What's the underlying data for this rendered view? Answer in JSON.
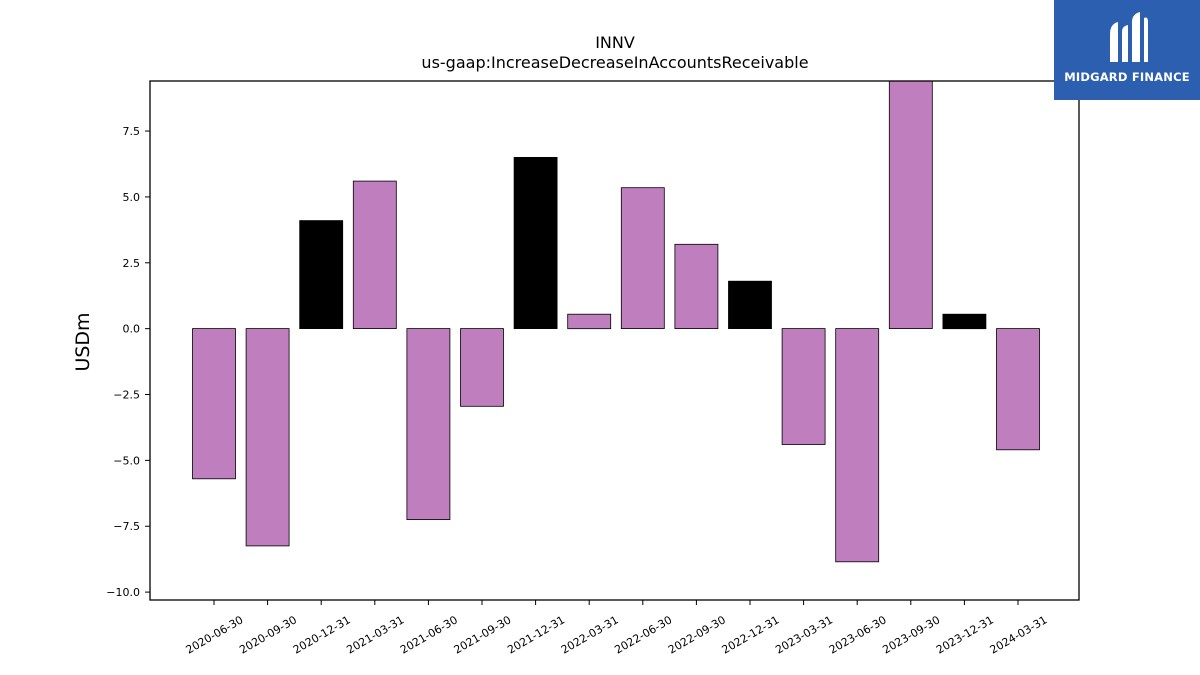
{
  "chart_data": {
    "type": "bar",
    "title": "INNV",
    "subtitle": "us-gaap:IncreaseDecreaseInAccountsReceivable",
    "xlabel": "",
    "ylabel": "USDm",
    "categories": [
      "2020-06-30",
      "2020-09-30",
      "2020-12-31",
      "2021-03-31",
      "2021-06-30",
      "2021-09-30",
      "2021-12-31",
      "2022-03-31",
      "2022-06-30",
      "2022-09-30",
      "2022-12-31",
      "2023-03-31",
      "2023-06-30",
      "2023-09-30",
      "2023-12-31",
      "2024-03-31"
    ],
    "values": [
      -5.7,
      -8.25,
      4.1,
      5.6,
      -7.25,
      -2.95,
      6.5,
      0.55,
      5.35,
      3.2,
      1.8,
      -4.4,
      -8.85,
      9.5,
      0.55,
      -4.6
    ],
    "bar_colors": [
      "#bf7fbf",
      "#bf7fbf",
      "#000000",
      "#bf7fbf",
      "#bf7fbf",
      "#bf7fbf",
      "#000000",
      "#bf7fbf",
      "#bf7fbf",
      "#bf7fbf",
      "#000000",
      "#bf7fbf",
      "#bf7fbf",
      "#bf7fbf",
      "#000000",
      "#bf7fbf"
    ],
    "ylim": [
      -10.3,
      9.4
    ],
    "yticks": [
      -10.0,
      -7.5,
      -5.0,
      -2.5,
      0.0,
      2.5,
      5.0,
      7.5
    ],
    "ytick_labels": [
      "−10.0",
      "−7.5",
      "−5.0",
      "−2.5",
      "0.0",
      "2.5",
      "5.0",
      "7.5"
    ],
    "grid": false
  },
  "logo": {
    "text": "MIDGARD FINANCE",
    "color": "#2d5fb0"
  }
}
